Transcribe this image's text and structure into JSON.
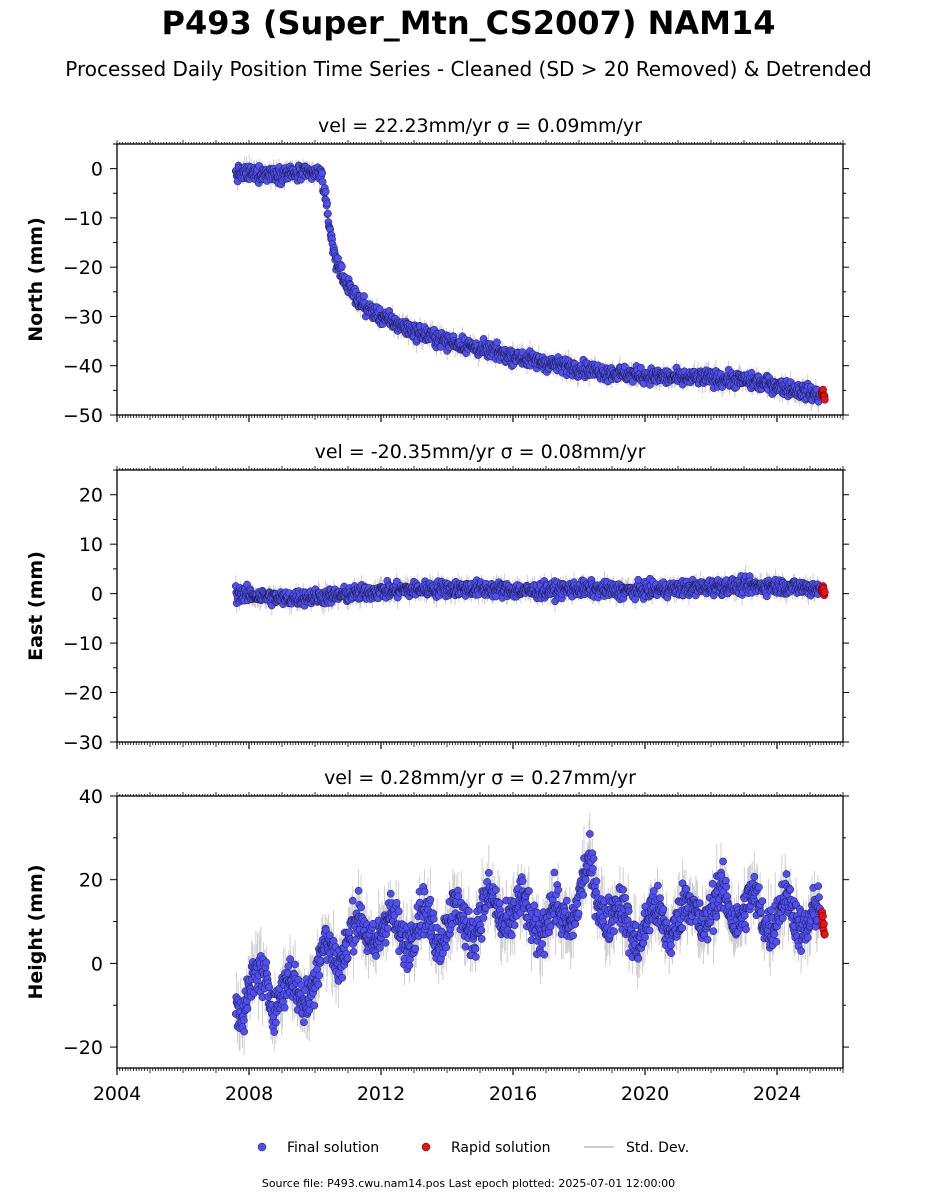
{
  "title": "P493 (Super_Mtn_CS2007) NAM14",
  "subtitle": "Processed Daily Position Time Series - Cleaned (SD > 20 Removed) & Detrended",
  "footer": "Source file: P493.cwu.nam14.pos  Last epoch plotted: 2025-07-01 12:00:00",
  "legend": {
    "final": "Final solution",
    "rapid": "Rapid solution",
    "std": "Std. Dev."
  },
  "colors": {
    "final": "#4f4ff5",
    "rapid": "#ee1111",
    "std": "#bbbbbb"
  },
  "chart_data": [
    {
      "type": "scatter",
      "component": "North",
      "title": "vel = 22.23mm/yr   σ = 0.09mm/yr",
      "ylabel": "North (mm)",
      "ylim": [
        -50,
        5
      ],
      "yticks": [
        0,
        -10,
        -20,
        -30,
        -40,
        -50
      ],
      "xlim": [
        2004,
        2026
      ],
      "series": [
        {
          "name": "Final solution",
          "x": [
            2007.6,
            2008.0,
            2008.5,
            2009.0,
            2009.5,
            2010.0,
            2010.2,
            2010.4,
            2010.6,
            2011.0,
            2011.5,
            2012.0,
            2012.5,
            2013.0,
            2013.5,
            2014.0,
            2015.0,
            2016.0,
            2017.0,
            2018.0,
            2019.0,
            2020.0,
            2021.0,
            2022.0,
            2023.0,
            2024.0,
            2025.3
          ],
          "y": [
            -1,
            -1,
            -1,
            -1,
            -1,
            -1,
            -1,
            -10,
            -18,
            -24,
            -28,
            -30,
            -31.5,
            -33,
            -34,
            -35,
            -36.5,
            -38,
            -39.5,
            -40.5,
            -41.5,
            -42,
            -42.5,
            -42.5,
            -43,
            -44,
            -46
          ]
        },
        {
          "name": "Rapid solution",
          "x": [
            2025.35,
            2025.45
          ],
          "y": [
            -45,
            -46.5
          ]
        }
      ]
    },
    {
      "type": "scatter",
      "component": "East",
      "title": "vel = -20.35mm/yr   σ = 0.08mm/yr",
      "ylabel": "East (mm)",
      "ylim": [
        -30,
        25
      ],
      "yticks": [
        20,
        10,
        0,
        -10,
        -20,
        -30
      ],
      "xlim": [
        2004,
        2026
      ],
      "series": [
        {
          "name": "Final solution",
          "x": [
            2007.6,
            2009.0,
            2010.5,
            2012.0,
            2013.5,
            2015.0,
            2016.5,
            2018.0,
            2019.5,
            2021.0,
            2022.5,
            2024.0,
            2025.3
          ],
          "y": [
            0,
            -1,
            -0.5,
            0.5,
            1,
            1,
            0.5,
            1,
            0.5,
            1,
            1.5,
            1.5,
            1
          ]
        },
        {
          "name": "Rapid solution",
          "x": [
            2025.35,
            2025.45
          ],
          "y": [
            1,
            0
          ]
        }
      ]
    },
    {
      "type": "scatter",
      "component": "Height",
      "title": "vel = 0.28mm/yr   σ = 0.27mm/yr",
      "ylabel": "Height (mm)",
      "ylim": [
        -25,
        40
      ],
      "yticks": [
        40,
        20,
        0,
        -20
      ],
      "xlim": [
        2004,
        2026
      ],
      "xticks": [
        2004,
        2008,
        2012,
        2016,
        2020,
        2024
      ],
      "series": [
        {
          "name": "Final solution",
          "x": [
            2007.6,
            2008.5,
            2009.5,
            2010.5,
            2011.5,
            2012.5,
            2013.5,
            2014.5,
            2015.5,
            2016.5,
            2017.5,
            2018.3,
            2018.7,
            2019.5,
            2020.5,
            2021.5,
            2022.5,
            2023.5,
            2024.5,
            2025.3
          ],
          "y": [
            -8,
            -5,
            -8,
            3,
            8,
            8,
            9,
            10,
            13,
            11,
            10,
            20,
            15,
            8,
            10,
            12,
            14,
            12,
            12,
            10
          ]
        },
        {
          "name": "Rapid solution",
          "x": [
            2025.35,
            2025.45
          ],
          "y": [
            12,
            8
          ]
        }
      ]
    }
  ]
}
